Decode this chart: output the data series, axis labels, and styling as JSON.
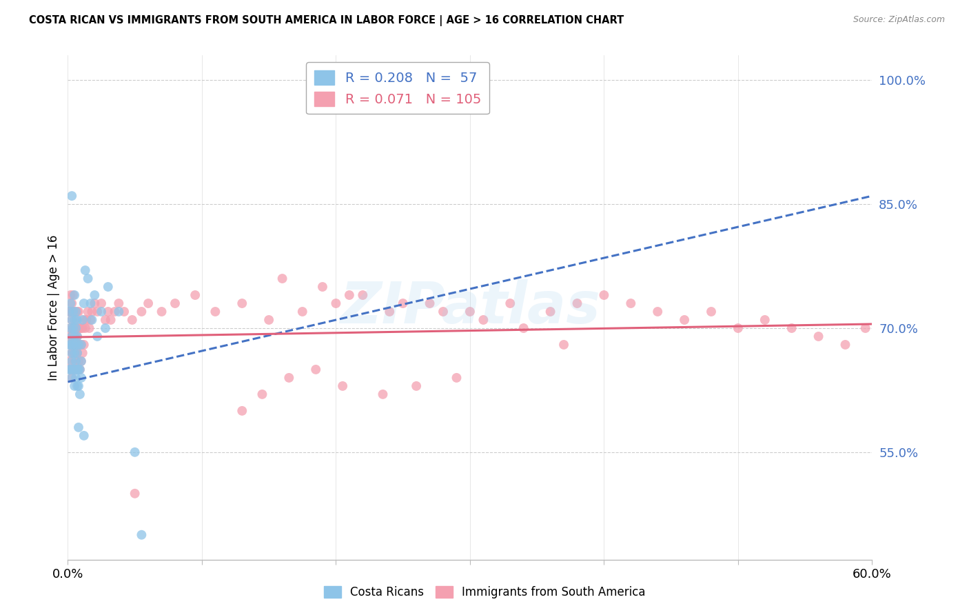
{
  "title": "COSTA RICAN VS IMMIGRANTS FROM SOUTH AMERICA IN LABOR FORCE | AGE > 16 CORRELATION CHART",
  "source": "Source: ZipAtlas.com",
  "ylabel": "In Labor Force | Age > 16",
  "y_tick_labels": [
    "55.0%",
    "70.0%",
    "85.0%",
    "100.0%"
  ],
  "y_tick_values": [
    0.55,
    0.7,
    0.85,
    1.0
  ],
  "x_range": [
    0.0,
    0.6
  ],
  "y_range": [
    0.42,
    1.03
  ],
  "blue_color": "#8ec4e8",
  "pink_color": "#f4a0b0",
  "blue_line_color": "#4472c4",
  "pink_line_color": "#e0607a",
  "tick_color": "#4472c4",
  "blue_R": 0.208,
  "blue_N": 57,
  "pink_R": 0.071,
  "pink_N": 105,
  "legend_label_blue": "Costa Ricans",
  "legend_label_pink": "Immigrants from South America",
  "watermark": "ZIPatlas",
  "blue_scatter_x": [
    0.001,
    0.001,
    0.001,
    0.002,
    0.002,
    0.002,
    0.002,
    0.003,
    0.003,
    0.003,
    0.003,
    0.003,
    0.004,
    0.004,
    0.004,
    0.004,
    0.005,
    0.005,
    0.005,
    0.005,
    0.005,
    0.005,
    0.006,
    0.006,
    0.006,
    0.006,
    0.006,
    0.007,
    0.007,
    0.007,
    0.007,
    0.007,
    0.008,
    0.008,
    0.008,
    0.009,
    0.009,
    0.01,
    0.01,
    0.01,
    0.011,
    0.012,
    0.013,
    0.015,
    0.017,
    0.018,
    0.02,
    0.022,
    0.025,
    0.028,
    0.03,
    0.038,
    0.05,
    0.055,
    0.003,
    0.008,
    0.012
  ],
  "blue_scatter_y": [
    0.65,
    0.68,
    0.72,
    0.65,
    0.68,
    0.7,
    0.73,
    0.64,
    0.67,
    0.69,
    0.71,
    0.66,
    0.65,
    0.68,
    0.7,
    0.72,
    0.63,
    0.65,
    0.67,
    0.69,
    0.71,
    0.74,
    0.64,
    0.66,
    0.68,
    0.7,
    0.72,
    0.63,
    0.65,
    0.67,
    0.69,
    0.71,
    0.63,
    0.65,
    0.68,
    0.62,
    0.65,
    0.64,
    0.66,
    0.68,
    0.71,
    0.73,
    0.77,
    0.76,
    0.73,
    0.71,
    0.74,
    0.69,
    0.72,
    0.7,
    0.75,
    0.72,
    0.55,
    0.45,
    0.86,
    0.58,
    0.57
  ],
  "pink_scatter_x": [
    0.001,
    0.001,
    0.001,
    0.002,
    0.002,
    0.002,
    0.002,
    0.002,
    0.003,
    0.003,
    0.003,
    0.003,
    0.003,
    0.004,
    0.004,
    0.004,
    0.004,
    0.004,
    0.005,
    0.005,
    0.005,
    0.005,
    0.006,
    0.006,
    0.006,
    0.006,
    0.007,
    0.007,
    0.007,
    0.007,
    0.008,
    0.008,
    0.008,
    0.008,
    0.009,
    0.009,
    0.009,
    0.01,
    0.01,
    0.01,
    0.011,
    0.011,
    0.012,
    0.012,
    0.013,
    0.014,
    0.015,
    0.016,
    0.017,
    0.018,
    0.02,
    0.022,
    0.025,
    0.028,
    0.03,
    0.032,
    0.035,
    0.038,
    0.042,
    0.048,
    0.055,
    0.06,
    0.07,
    0.08,
    0.095,
    0.11,
    0.13,
    0.15,
    0.175,
    0.2,
    0.22,
    0.24,
    0.27,
    0.3,
    0.33,
    0.36,
    0.38,
    0.4,
    0.42,
    0.44,
    0.46,
    0.48,
    0.5,
    0.52,
    0.54,
    0.56,
    0.58,
    0.595,
    0.16,
    0.19,
    0.21,
    0.25,
    0.28,
    0.31,
    0.34,
    0.37,
    0.13,
    0.145,
    0.165,
    0.185,
    0.205,
    0.235,
    0.26,
    0.29,
    0.05
  ],
  "pink_scatter_y": [
    0.66,
    0.69,
    0.72,
    0.65,
    0.68,
    0.7,
    0.72,
    0.74,
    0.64,
    0.67,
    0.69,
    0.71,
    0.73,
    0.65,
    0.67,
    0.7,
    0.72,
    0.74,
    0.66,
    0.68,
    0.7,
    0.72,
    0.65,
    0.67,
    0.69,
    0.71,
    0.65,
    0.67,
    0.69,
    0.72,
    0.66,
    0.68,
    0.7,
    0.72,
    0.65,
    0.68,
    0.7,
    0.66,
    0.68,
    0.7,
    0.67,
    0.7,
    0.68,
    0.71,
    0.7,
    0.71,
    0.72,
    0.7,
    0.71,
    0.72,
    0.73,
    0.72,
    0.73,
    0.71,
    0.72,
    0.71,
    0.72,
    0.73,
    0.72,
    0.71,
    0.72,
    0.73,
    0.72,
    0.73,
    0.74,
    0.72,
    0.73,
    0.71,
    0.72,
    0.73,
    0.74,
    0.72,
    0.73,
    0.72,
    0.73,
    0.72,
    0.73,
    0.74,
    0.73,
    0.72,
    0.71,
    0.72,
    0.7,
    0.71,
    0.7,
    0.69,
    0.68,
    0.7,
    0.76,
    0.75,
    0.74,
    0.73,
    0.72,
    0.71,
    0.7,
    0.68,
    0.6,
    0.62,
    0.64,
    0.65,
    0.63,
    0.62,
    0.63,
    0.64,
    0.5
  ],
  "blue_trend_x0": 0.0,
  "blue_trend_y0": 0.635,
  "blue_trend_x1": 0.6,
  "blue_trend_y1": 0.86,
  "pink_trend_x0": 0.0,
  "pink_trend_y0": 0.689,
  "pink_trend_x1": 0.6,
  "pink_trend_y1": 0.705
}
